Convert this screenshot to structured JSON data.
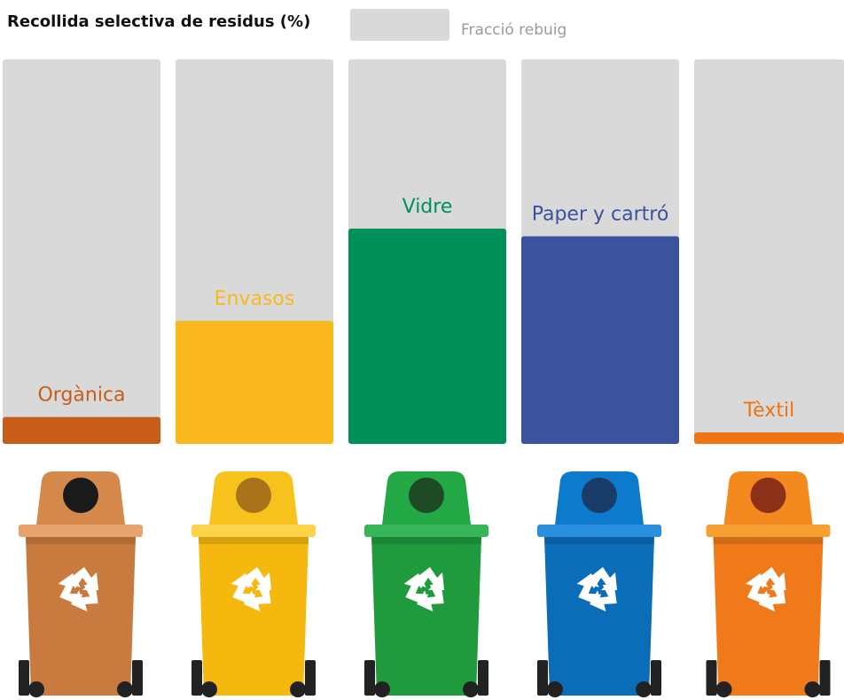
{
  "chart_data": {
    "type": "bar",
    "title": "Recollida selectiva de residus (%)",
    "rest_label": "Fracció rebuig",
    "rest_color": "#d9d9d9",
    "categories": [
      "Orgànica",
      "Envasos",
      "Vidre",
      "Paper y cartró",
      "Tèxtil"
    ],
    "values": [
      7,
      32,
      56,
      54,
      3
    ],
    "colors": [
      "#c85d1a",
      "#f8b81e",
      "#00915a",
      "#3b529f",
      "#ee7414"
    ],
    "ylim": [
      0,
      100
    ]
  }
}
